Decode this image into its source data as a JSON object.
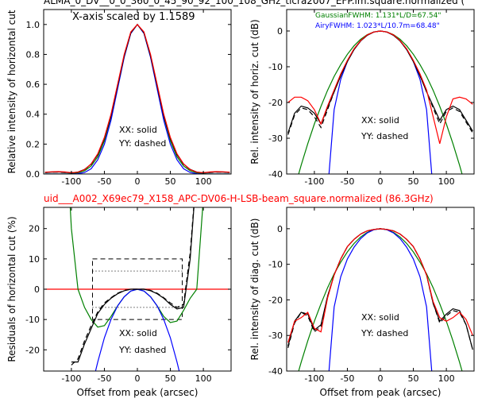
{
  "chart_data": [
    {
      "type": "line",
      "title": "ALMA_0_DV__0_0_360_0_45_90_92_100_108_GHz_ticra2007_EFP.im.square.normalized (",
      "ylabel": "Relative intensity of horizontal cut",
      "annotations": [
        {
          "text": "X-axis scaled by 1.1589",
          "color": "#000000"
        },
        {
          "text": "XX: solid",
          "color": "#000000"
        },
        {
          "text": "YY: dashed",
          "color": "#000000"
        }
      ],
      "x": [
        -140,
        -130,
        -120,
        -110,
        -100,
        -90,
        -80,
        -70,
        -60,
        -50,
        -40,
        -30,
        -20,
        -10,
        0,
        10,
        20,
        30,
        40,
        50,
        60,
        70,
        80,
        90,
        100,
        110,
        120,
        130,
        140
      ],
      "xlim": [
        -142,
        142
      ],
      "ylim": [
        0,
        1.1
      ],
      "xticks": [
        -100,
        -50,
        0,
        50,
        100
      ],
      "yticks": [
        {
          "value": 0,
          "label": "0.0"
        },
        {
          "value": 0.2,
          "label": "0.2"
        },
        {
          "value": 0.4,
          "label": "0.4"
        },
        {
          "value": 0.6,
          "label": "0.6"
        },
        {
          "value": 0.8,
          "label": "0.8"
        },
        {
          "value": 1.0,
          "label": "1.0"
        }
      ],
      "series": [
        {
          "color": "#008000",
          "style": "solid",
          "values": [
            0,
            0,
            0,
            0,
            0.002,
            0.008,
            0.022,
            0.053,
            0.115,
            0.223,
            0.383,
            0.583,
            0.787,
            0.942,
            1,
            0.942,
            0.787,
            0.583,
            0.383,
            0.223,
            0.115,
            0.053,
            0.022,
            0.008,
            0.002,
            0,
            0,
            0,
            0
          ]
        },
        {
          "color": "#0000ff",
          "style": "solid",
          "values": [
            0,
            0,
            0,
            0,
            0,
            0.002,
            0.01,
            0.035,
            0.095,
            0.2,
            0.36,
            0.57,
            0.78,
            0.94,
            1,
            0.94,
            0.78,
            0.57,
            0.36,
            0.2,
            0.095,
            0.035,
            0.01,
            0.002,
            0,
            0,
            0,
            0,
            0
          ]
        },
        {
          "color": "#000000",
          "style": "dashed",
          "values": [
            0.01,
            0.012,
            0.012,
            0.01,
            0.008,
            0.012,
            0.03,
            0.065,
            0.13,
            0.24,
            0.39,
            0.59,
            0.79,
            0.945,
            1,
            0.945,
            0.79,
            0.59,
            0.39,
            0.24,
            0.13,
            0.065,
            0.03,
            0.012,
            0.008,
            0.01,
            0.012,
            0.012,
            0.01
          ]
        },
        {
          "color": "#000000",
          "style": "solid",
          "values": [
            0.01,
            0.013,
            0.014,
            0.011,
            0.008,
            0.013,
            0.031,
            0.066,
            0.13,
            0.24,
            0.39,
            0.59,
            0.79,
            0.945,
            1,
            0.945,
            0.79,
            0.59,
            0.39,
            0.24,
            0.13,
            0.066,
            0.031,
            0.013,
            0.008,
            0.011,
            0.014,
            0.013,
            0.01
          ]
        },
        {
          "color": "#ff0000",
          "style": "solid",
          "values": [
            0.012,
            0.015,
            0.016,
            0.014,
            0.009,
            0.012,
            0.03,
            0.068,
            0.135,
            0.245,
            0.4,
            0.6,
            0.8,
            0.95,
            1,
            0.95,
            0.8,
            0.6,
            0.4,
            0.245,
            0.135,
            0.068,
            0.03,
            0.012,
            0.009,
            0.014,
            0.016,
            0.015,
            0.012
          ]
        }
      ]
    },
    {
      "type": "line",
      "ylabel": "Rel. intensity of horiz. cut (dB)",
      "annotations": [
        {
          "text": "GaussianFWHM: 1.131*L/D=67.54\"",
          "color": "#008000"
        },
        {
          "text": "AiryFWHM: 1.023*L/10.7m=68.48\"",
          "color": "#0000ff"
        },
        {
          "text": "XX: solid",
          "color": "#000000"
        },
        {
          "text": "YY: dashed",
          "color": "#000000"
        }
      ],
      "x": [
        -140,
        -130,
        -120,
        -110,
        -100,
        -90,
        -80,
        -70,
        -60,
        -50,
        -40,
        -30,
        -20,
        -10,
        0,
        10,
        20,
        30,
        40,
        50,
        60,
        70,
        80,
        90,
        100,
        110,
        120,
        130,
        140
      ],
      "xlim": [
        -142,
        142
      ],
      "ylim": [
        -40,
        6
      ],
      "xticks": [
        -100,
        -50,
        0,
        50,
        100
      ],
      "yticks": [
        -40,
        -30,
        -20,
        -10,
        0
      ],
      "series": [
        {
          "color": "#008000",
          "style": "solid",
          "values": [
            null,
            -44,
            -37.5,
            -31.5,
            -26,
            -21.1,
            -16.6,
            -12.7,
            -9.4,
            -6.5,
            -4.16,
            -2.34,
            -1.04,
            -0.26,
            0,
            -0.26,
            -1.04,
            -2.34,
            -4.16,
            -6.5,
            -9.4,
            -12.7,
            -16.6,
            -21.1,
            -26,
            -31.5,
            -37.5,
            -44,
            null
          ]
        },
        {
          "color": "#0000ff",
          "style": "solid",
          "values": [
            null,
            null,
            null,
            null,
            null,
            null,
            -45,
            -22,
            -13.5,
            -8.5,
            -5.2,
            -2.8,
            -1.2,
            -0.3,
            0,
            -0.3,
            -1.2,
            -2.8,
            -5.2,
            -8.5,
            -13.5,
            -22,
            -45,
            null,
            null,
            null,
            null,
            null,
            null
          ]
        },
        {
          "color": "#000000",
          "style": "dashed",
          "values": [
            -29,
            -23.5,
            -21.5,
            -22,
            -24,
            -27,
            -22,
            -17,
            -12.5,
            -8.5,
            -5.2,
            -2.8,
            -1.2,
            -0.3,
            0,
            -0.3,
            -1.2,
            -2.8,
            -5.2,
            -8.5,
            -12.5,
            -17,
            -21.5,
            -26,
            -22.5,
            -21.5,
            -22.5,
            -25.5,
            -28.5
          ]
        },
        {
          "color": "#000000",
          "style": "solid",
          "values": [
            -28.5,
            -23,
            -21,
            -21.5,
            -23,
            -26,
            -21.5,
            -17,
            -12.5,
            -8.5,
            -5.2,
            -2.8,
            -1.2,
            -0.3,
            0,
            -0.3,
            -1.2,
            -2.8,
            -5.2,
            -8.5,
            -12.5,
            -17,
            -21,
            -25,
            -22,
            -21,
            -22,
            -25,
            -28
          ]
        },
        {
          "color": "#ff0000",
          "style": "solid",
          "values": [
            -20,
            -18.5,
            -18.5,
            -19.5,
            -22,
            -26,
            -21,
            -16.5,
            -12,
            -8.2,
            -5,
            -2.7,
            -1.1,
            -0.3,
            0,
            -0.3,
            -1.1,
            -2.7,
            -5,
            -8.2,
            -12,
            -16.5,
            -24,
            -31.5,
            -24,
            -19,
            -18.5,
            -19,
            -20.5
          ]
        }
      ]
    },
    {
      "type": "line",
      "title": "uid___A002_X69ec79_X158_APC-DV06-H-LSB-beam_square.normalized (86.3GHz)",
      "title_color": "#ff0000",
      "ylabel": "Residuals of horizontal cut (%)",
      "xlabel": "Offset from peak (arcsec)",
      "annotations": [
        {
          "text": "XX: solid",
          "color": "#000000"
        },
        {
          "text": "YY: dashed",
          "color": "#000000"
        }
      ],
      "x": [
        -140,
        -130,
        -120,
        -110,
        -100,
        -90,
        -80,
        -70,
        -60,
        -50,
        -40,
        -30,
        -20,
        -10,
        0,
        10,
        20,
        30,
        40,
        50,
        60,
        70,
        80,
        90,
        100,
        110,
        120,
        130,
        140
      ],
      "xlim": [
        -142,
        142
      ],
      "ylim": [
        -27,
        27
      ],
      "xticks": [
        -100,
        -50,
        0,
        50,
        100
      ],
      "yticks": [
        -20,
        -10,
        0,
        10,
        20
      ],
      "dashed_box": {
        "x": [
          -68,
          68
        ],
        "y": [
          -10,
          10
        ]
      },
      "dotted_lines": {
        "x": [
          -68,
          68
        ],
        "y": [
          -6,
          6
        ]
      },
      "series": [
        {
          "color": "#ff0000",
          "style": "solid",
          "values": [
            0,
            0,
            0,
            0,
            0,
            0,
            0,
            0,
            0,
            0,
            0,
            0,
            0,
            0,
            0,
            0,
            0,
            0,
            0,
            0,
            0,
            0,
            0,
            0,
            0,
            0,
            0,
            0,
            0
          ]
        },
        {
          "color": "#008000",
          "style": "solid",
          "values": [
            null,
            null,
            null,
            60,
            20,
            0,
            -6,
            -10,
            -12.5,
            -12,
            -9,
            -5.5,
            -2.5,
            -0.6,
            0,
            -0.6,
            -2.5,
            -5.5,
            -9,
            -11,
            -10.5,
            -7,
            -3,
            0,
            30,
            null,
            null,
            null,
            null
          ]
        },
        {
          "color": "#0000ff",
          "style": "solid",
          "values": [
            null,
            null,
            null,
            null,
            null,
            null,
            null,
            -33,
            -24,
            -16,
            -10,
            -5.5,
            -2.5,
            -0.6,
            0,
            -0.6,
            -2.5,
            -5.5,
            -10,
            -16,
            -24,
            -33,
            null,
            null,
            null,
            null,
            null,
            null,
            null
          ]
        },
        {
          "color": "#000000",
          "style": "dashed",
          "values": [
            null,
            null,
            null,
            null,
            -25,
            -23,
            -17,
            -12,
            -7.5,
            -4.5,
            -2.8,
            -1.3,
            -0.4,
            0,
            0,
            0,
            -0.4,
            -1.3,
            -2.8,
            -4.5,
            -6,
            -5,
            12,
            40,
            null,
            null,
            null,
            null,
            null
          ]
        },
        {
          "color": "#000000",
          "style": "solid",
          "values": [
            null,
            null,
            null,
            null,
            -24,
            -24,
            -18,
            -13,
            -8,
            -5,
            -3,
            -1.5,
            -0.5,
            0,
            0,
            0,
            -0.5,
            -1.5,
            -3,
            -5,
            -6.5,
            -6,
            10,
            40,
            null,
            null,
            null,
            null,
            null
          ]
        }
      ]
    },
    {
      "type": "line",
      "ylabel": "Rel. intensity of diag. cut (dB)",
      "xlabel": "Offset from peak (arcsec)",
      "annotations": [
        {
          "text": "XX: solid",
          "color": "#000000"
        },
        {
          "text": "YY: dashed",
          "color": "#000000"
        }
      ],
      "x": [
        -140,
        -130,
        -120,
        -110,
        -100,
        -90,
        -80,
        -70,
        -60,
        -50,
        -40,
        -30,
        -20,
        -10,
        0,
        10,
        20,
        30,
        40,
        50,
        60,
        70,
        80,
        90,
        100,
        110,
        120,
        130,
        140
      ],
      "xlim": [
        -142,
        142
      ],
      "ylim": [
        -40,
        6
      ],
      "xticks": [
        -100,
        -50,
        0,
        50,
        100
      ],
      "yticks": [
        -40,
        -30,
        -20,
        -10,
        0
      ],
      "series": [
        {
          "color": "#008000",
          "style": "solid",
          "values": [
            null,
            -44,
            -37.5,
            -31.5,
            -26,
            -21.1,
            -16.6,
            -12.7,
            -9.4,
            -6.5,
            -4.16,
            -2.34,
            -1.04,
            -0.26,
            0,
            -0.26,
            -1.04,
            -2.34,
            -4.16,
            -6.5,
            -9.4,
            -12.7,
            -16.6,
            -21.1,
            -26,
            -31.5,
            -37.5,
            -44,
            null
          ]
        },
        {
          "color": "#0000ff",
          "style": "solid",
          "values": [
            null,
            null,
            null,
            null,
            null,
            null,
            -45,
            -22,
            -13.5,
            -8.5,
            -5.2,
            -2.8,
            -1.2,
            -0.3,
            0,
            -0.3,
            -1.2,
            -2.8,
            -5.2,
            -8.5,
            -13.5,
            -22,
            -45,
            null,
            null,
            null,
            null,
            null,
            null
          ]
        },
        {
          "color": "#000000",
          "style": "dashed",
          "values": [
            -33.5,
            -26.5,
            -23.5,
            -24.5,
            -29,
            -27.5,
            -19,
            -13,
            -8.5,
            -5,
            -3,
            -1.5,
            -0.6,
            -0.2,
            0,
            -0.2,
            -0.6,
            -1.5,
            -3,
            -5,
            -8.5,
            -13,
            -21,
            -26.5,
            -24.5,
            -23,
            -23.5,
            -27,
            -34
          ]
        },
        {
          "color": "#000000",
          "style": "solid",
          "values": [
            -33,
            -26,
            -23.5,
            -24,
            -28.5,
            -27,
            -19,
            -13,
            -8.5,
            -5,
            -3,
            -1.5,
            -0.6,
            -0.2,
            0,
            -0.2,
            -0.6,
            -1.5,
            -3,
            -5,
            -8.5,
            -13,
            -21,
            -26,
            -24,
            -22.5,
            -23,
            -27,
            -34
          ]
        },
        {
          "color": "#ff0000",
          "style": "solid",
          "values": [
            -32,
            -26,
            -25,
            -23.5,
            -28,
            -29,
            -19.5,
            -13,
            -8.5,
            -5,
            -3,
            -1.5,
            -0.6,
            -0.2,
            0,
            -0.2,
            -0.6,
            -1.5,
            -3,
            -5,
            -8.5,
            -13,
            -20.5,
            -25,
            -26,
            -25,
            -23.5,
            -25.5,
            -30
          ]
        }
      ]
    }
  ]
}
